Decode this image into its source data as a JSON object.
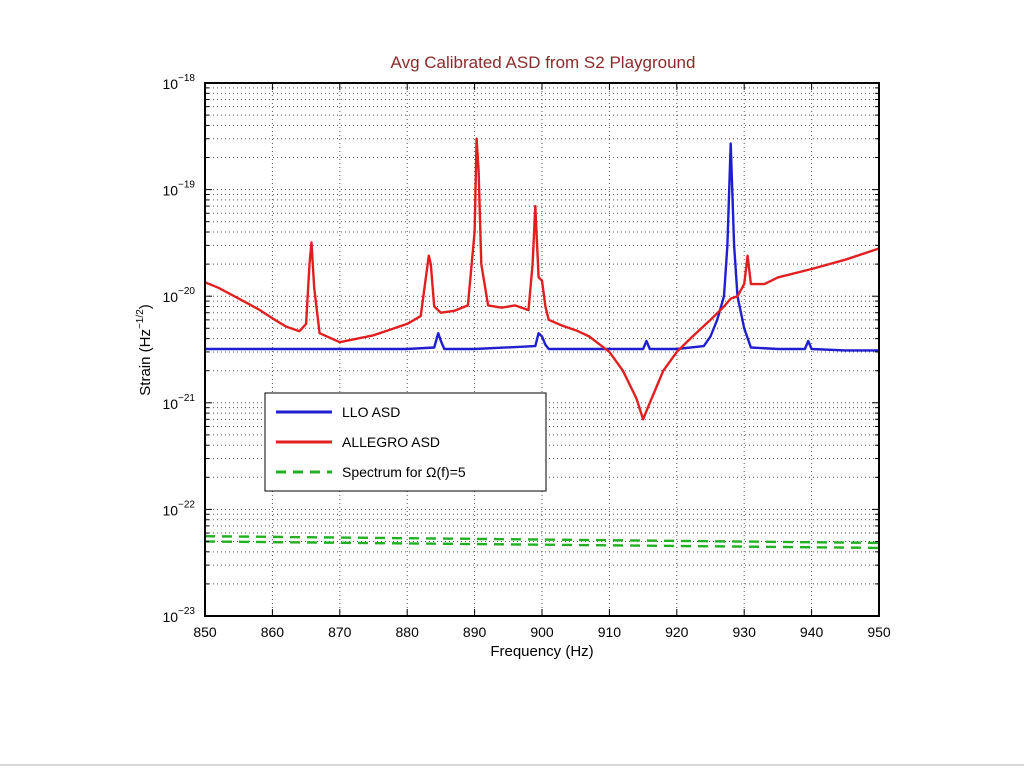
{
  "chart_data": {
    "type": "line",
    "title": "Avg Calibrated ASD from S2 Playground",
    "xlabel": "Frequency (Hz)",
    "ylabel": "Strain (Hz",
    "ylabel_exp": "−1/2",
    "ylabel_close": ")",
    "xlim": [
      850,
      950
    ],
    "ylim": [
      1e-23,
      1e-18
    ],
    "yscale": "log",
    "grid": true,
    "x_ticks": [
      850,
      860,
      870,
      880,
      890,
      900,
      910,
      920,
      930,
      940,
      950
    ],
    "y_ticks": [
      {
        "value": 1e-23,
        "base": "10",
        "exp": "−23"
      },
      {
        "value": 1e-22,
        "base": "10",
        "exp": "−22"
      },
      {
        "value": 1e-21,
        "base": "10",
        "exp": "−21"
      },
      {
        "value": 1e-20,
        "base": "10",
        "exp": "−20"
      },
      {
        "value": 1e-19,
        "base": "10",
        "exp": "−19"
      },
      {
        "value": 1e-18,
        "base": "10",
        "exp": "−18"
      }
    ],
    "legend_position": "lower-left",
    "series": [
      {
        "name": "LLO ASD",
        "color": "#1f1fd0",
        "style": "solid",
        "x": [
          850,
          860,
          870,
          880,
          884,
          884.6,
          885,
          885.5,
          890,
          899,
          899.5,
          900,
          900.5,
          901,
          905,
          910,
          915,
          915.5,
          916,
          920,
          924,
          925,
          926,
          927,
          927.5,
          928,
          928.5,
          929,
          930,
          931,
          935,
          939,
          939.5,
          940,
          945,
          950
        ],
        "y": [
          3.2e-21,
          3.2e-21,
          3.2e-21,
          3.2e-21,
          3.3e-21,
          4.5e-21,
          3.8e-21,
          3.2e-21,
          3.2e-21,
          3.4e-21,
          4.5e-21,
          4.2e-21,
          3.5e-21,
          3.2e-21,
          3.2e-21,
          3.2e-21,
          3.2e-21,
          3.8e-21,
          3.2e-21,
          3.2e-21,
          3.4e-21,
          4.2e-21,
          6e-21,
          1e-20,
          3e-20,
          2.7e-19,
          3e-20,
          1e-20,
          5e-21,
          3.3e-21,
          3.2e-21,
          3.2e-21,
          3.8e-21,
          3.2e-21,
          3.1e-21,
          3.1e-21
        ]
      },
      {
        "name": "ALLEGRO ASD",
        "color": "#e02020",
        "style": "solid",
        "x": [
          850,
          852,
          855,
          858,
          860,
          862,
          864,
          865,
          865.5,
          865.8,
          866.2,
          867,
          870,
          875,
          880,
          882,
          883.2,
          883.5,
          884,
          885,
          887,
          889,
          890,
          890.3,
          890.6,
          891,
          892,
          894,
          896,
          898,
          898.6,
          899,
          899.5,
          900,
          900.5,
          901,
          903,
          905,
          907,
          910,
          912,
          914,
          915,
          916,
          918,
          920,
          922,
          925,
          927,
          928,
          929,
          930,
          930.5,
          931,
          933,
          935,
          940,
          945,
          950
        ],
        "y": [
          1.35e-20,
          1.2e-20,
          9.5e-21,
          7.5e-21,
          6.2e-21,
          5.2e-21,
          4.7e-21,
          5.5e-21,
          2e-20,
          3.2e-20,
          1.2e-20,
          4.5e-21,
          3.7e-21,
          4.3e-21,
          5.5e-21,
          6.5e-21,
          2.4e-20,
          2e-20,
          8e-21,
          7e-21,
          7.3e-21,
          8.2e-21,
          4e-20,
          3e-19,
          1.5e-19,
          2e-20,
          8.2e-21,
          7.8e-21,
          8.2e-21,
          7.4e-21,
          2e-20,
          7e-20,
          1.5e-20,
          1.4e-20,
          8e-21,
          6e-21,
          5.3e-21,
          4.8e-21,
          4.2e-21,
          3e-21,
          2e-21,
          1.1e-21,
          7e-22,
          1e-21,
          2e-21,
          3e-21,
          4e-21,
          6e-21,
          8e-21,
          9.5e-21,
          1e-20,
          1.3e-20,
          2.4e-20,
          1.3e-20,
          1.3e-20,
          1.5e-20,
          1.8e-20,
          2.2e-20,
          2.8e-20
        ]
      },
      {
        "name": "Spectrum for Ω(f)=5",
        "color": "#22b022",
        "style": "dashed",
        "x": [
          850,
          950
        ],
        "y": [
          5.6e-23,
          4.85e-23
        ]
      },
      {
        "name": "",
        "color": "#22b022",
        "style": "dashed",
        "x": [
          850,
          950
        ],
        "y": [
          5e-23,
          4.35e-23
        ]
      }
    ]
  }
}
